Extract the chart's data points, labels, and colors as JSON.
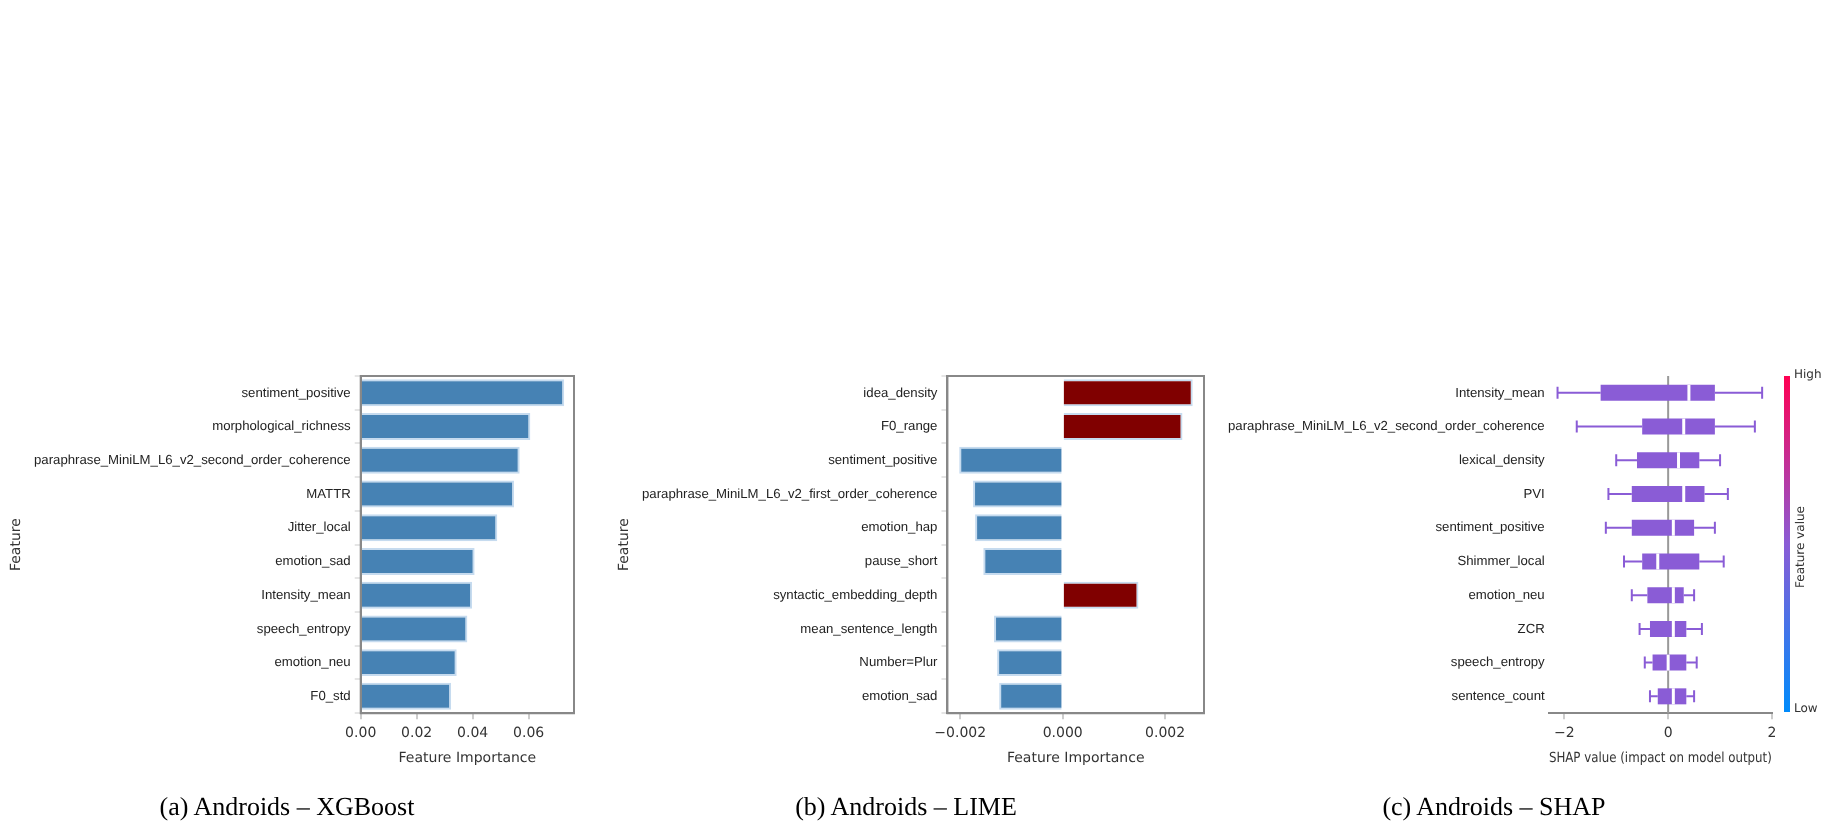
{
  "chart_data": [
    {
      "type": "bar",
      "orientation": "horizontal",
      "title": "(a) Androids – XGBoost",
      "xlabel": "Feature Importance",
      "ylabel": "Feature",
      "categories": [
        "sentiment_positive",
        "morphological_richness",
        "paraphrase_MiniLM_L6_v2_second_order_coherence",
        "MATTR",
        "Jitter_local",
        "emotion_sad",
        "Intensity_mean",
        "speech_entropy",
        "emotion_neu",
        "F0_std"
      ],
      "values": [
        0.0727,
        0.0606,
        0.0568,
        0.0548,
        0.0488,
        0.0407,
        0.0398,
        0.0381,
        0.0343,
        0.0323
      ],
      "color": "#4682b4",
      "xlim": [
        0,
        0.0762
      ],
      "xticks": [
        {
          "value": 0,
          "label": "0.00"
        },
        0.02,
        0.04,
        0.06
      ]
    },
    {
      "type": "bar",
      "orientation": "horizontal",
      "title": "(b) Androids – LIME",
      "xlabel": "Feature Importance",
      "ylabel": "Feature",
      "categories": [
        "idea_density",
        "F0_range",
        "sentiment_positive",
        "paraphrase_MiniLM_L6_v2_first_order_coherence",
        "emotion_hap",
        "pause_short",
        "syntactic_embedding_depth",
        "mean_sentence_length",
        "Number=Plur",
        "emotion_sad"
      ],
      "values": [
        0.00254,
        0.00234,
        -0.00202,
        -0.00175,
        -0.00171,
        -0.00155,
        0.00148,
        -0.00134,
        -0.00128,
        -0.00124
      ],
      "colors": [
        "#800000",
        "#800000",
        "#4682b4",
        "#4682b4",
        "#4682b4",
        "#4682b4",
        "#800000",
        "#4682b4",
        "#4682b4",
        "#4682b4"
      ],
      "xlim": [
        -0.00225,
        0.00276
      ],
      "xticks": [
        {
          "value": -0.002,
          "label": "−0.002"
        },
        {
          "value": 0,
          "label": "0.000"
        },
        {
          "value": 0.002,
          "label": "0.002"
        }
      ]
    },
    {
      "type": "box",
      "orientation": "horizontal",
      "title": "(c) Androids – SHAP",
      "xlabel": "SHAP value (impact on model output)",
      "clabel": "Feature value",
      "annotations": [
        "High",
        "Low"
      ],
      "categories": [
        "Intensity_mean",
        "paraphrase_MiniLM_L6_v2_second_order_coherence",
        "lexical_density",
        "PVI",
        "sentiment_positive",
        "Shimmer_local",
        "emotion_neu",
        "ZCR",
        "speech_entropy",
        "sentence_count"
      ],
      "color": "#8a5cd6",
      "boxes": [
        {
          "low": -2.13,
          "q1": -1.3,
          "median": 0.4,
          "q3": 0.9,
          "high": 1.81
        },
        {
          "low": -1.76,
          "q1": -0.5,
          "median": 0.3,
          "q3": 0.9,
          "high": 1.67
        },
        {
          "low": -1.0,
          "q1": -0.6,
          "median": 0.2,
          "q3": 0.6,
          "high": 1.0
        },
        {
          "low": -1.15,
          "q1": -0.7,
          "median": 0.3,
          "q3": 0.7,
          "high": 1.15
        },
        {
          "low": -1.2,
          "q1": -0.7,
          "median": 0.1,
          "q3": 0.5,
          "high": 0.9
        },
        {
          "low": -0.85,
          "q1": -0.5,
          "median": -0.2,
          "q3": 0.6,
          "high": 1.07
        },
        {
          "low": -0.7,
          "q1": -0.4,
          "median": 0.1,
          "q3": 0.3,
          "high": 0.5
        },
        {
          "low": -0.55,
          "q1": -0.35,
          "median": 0.1,
          "q3": 0.35,
          "high": 0.65
        },
        {
          "low": -0.45,
          "q1": -0.3,
          "median": 0.0,
          "q3": 0.35,
          "high": 0.55
        },
        {
          "low": -0.35,
          "q1": -0.2,
          "median": 0.1,
          "q3": 0.35,
          "high": 0.5
        }
      ],
      "ref_lines": [
        {
          "axis": "x",
          "value": 0,
          "color": "#999999"
        }
      ],
      "xlim": [
        -2.3,
        2.0
      ],
      "xticks": [
        {
          "value": -2,
          "label": "−2"
        },
        0,
        2
      ]
    }
  ]
}
